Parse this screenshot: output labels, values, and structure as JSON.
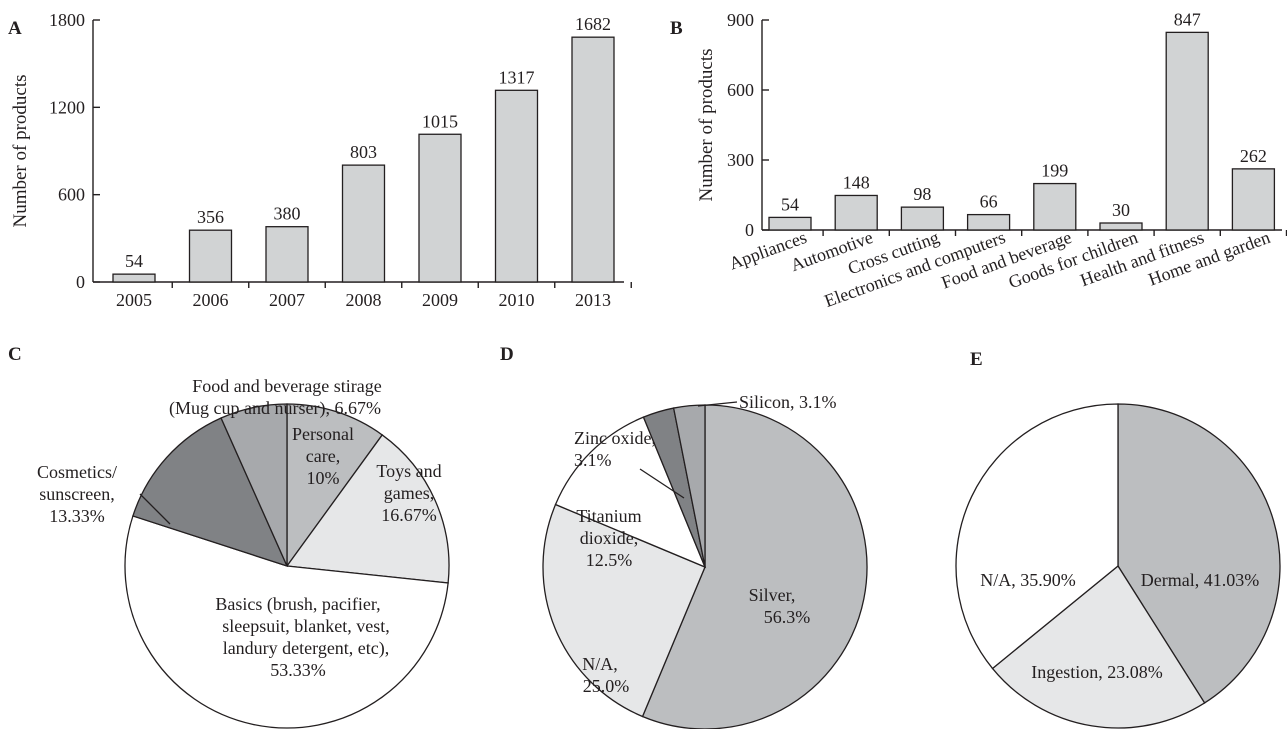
{
  "colors": {
    "bar_fill": "#d1d3d4",
    "outline": "#231f20",
    "white": "#ffffff",
    "light_gray": "#e6e7e8",
    "mid_gray": "#bcbec0",
    "gray": "#a7a9ac",
    "dark_gray": "#808285"
  },
  "panels": {
    "A": "A",
    "B": "B",
    "C": "C",
    "D": "D",
    "E": "E"
  },
  "chart_data": [
    {
      "panel": "A",
      "type": "bar",
      "ylabel": "Number of products",
      "categories": [
        "2005",
        "2006",
        "2007",
        "2008",
        "2009",
        "2010",
        "2013"
      ],
      "values": [
        54,
        356,
        380,
        803,
        1015,
        1317,
        1682
      ],
      "data_labels": [
        "54",
        "356",
        "380",
        "803",
        "1015",
        "1317",
        "1682"
      ],
      "ylim": [
        0,
        1800
      ],
      "yticks": [
        0,
        600,
        1200,
        1800
      ]
    },
    {
      "panel": "B",
      "type": "bar",
      "ylabel": "Number of products",
      "categories": [
        "Appliances",
        "Automotive",
        "Cross cutting",
        "Electronics and computers",
        "Food and beverage",
        "Goods for children",
        "Health and fitness",
        "Home and garden"
      ],
      "values": [
        54,
        148,
        98,
        66,
        199,
        30,
        847,
        262
      ],
      "data_labels": [
        "54",
        "148",
        "98",
        "66",
        "199",
        "30",
        "847",
        "262"
      ],
      "ylim": [
        0,
        900
      ],
      "yticks": [
        0,
        300,
        600,
        900
      ],
      "xtick_rotation": "angled"
    },
    {
      "panel": "C",
      "type": "pie",
      "slices": [
        {
          "name": "Personal care",
          "value": 10,
          "label_lines": [
            "Personal",
            "care,",
            "10%"
          ],
          "color": "mid_gray"
        },
        {
          "name": "Toys and games",
          "value": 16.67,
          "label_lines": [
            "Toys and",
            "games,",
            "16.67%"
          ],
          "color": "light_gray"
        },
        {
          "name": "Basics",
          "value": 53.33,
          "label_lines": [
            "Basics (brush, pacifier,",
            "sleepsuit, blanket, vest,",
            "landury detergent, etc),",
            "53.33%"
          ],
          "color": "white"
        },
        {
          "name": "Cosmetics/sunscreen",
          "value": 13.33,
          "label_lines": [
            "Cosmetics/",
            "sunscreen,",
            "13.33%"
          ],
          "color": "dark_gray"
        },
        {
          "name": "Food and beverage stirage",
          "value": 6.67,
          "label_lines": [
            "Food and beverage stirage",
            "(Mug cup and nurser), 6.67%"
          ],
          "color": "gray"
        }
      ]
    },
    {
      "panel": "D",
      "type": "pie",
      "slices": [
        {
          "name": "Silver",
          "value": 56.3,
          "label_lines": [
            "Silver,",
            "56.3%"
          ],
          "color": "mid_gray"
        },
        {
          "name": "N/A",
          "value": 25.0,
          "label_lines": [
            "N/A,",
            "25.0%"
          ],
          "color": "light_gray"
        },
        {
          "name": "Titanium dioxide",
          "value": 12.5,
          "label_lines": [
            "Titanium",
            "dioxide,",
            "12.5%"
          ],
          "color": "white"
        },
        {
          "name": "Zinc oxide",
          "value": 3.1,
          "label_lines": [
            "Zinc oxide,",
            "3.1%"
          ],
          "color": "dark_gray"
        },
        {
          "name": "Silicon",
          "value": 3.1,
          "label_lines": [
            "Silicon, 3.1%"
          ],
          "color": "gray"
        }
      ]
    },
    {
      "panel": "E",
      "type": "pie",
      "slices": [
        {
          "name": "Dermal",
          "value": 41.03,
          "label_lines": [
            "Dermal, 41.03%"
          ],
          "color": "mid_gray"
        },
        {
          "name": "Ingestion",
          "value": 23.08,
          "label_lines": [
            "Ingestion, 23.08%"
          ],
          "color": "light_gray"
        },
        {
          "name": "N/A",
          "value": 35.9,
          "label_lines": [
            "N/A, 35.90%"
          ],
          "color": "white"
        }
      ]
    }
  ]
}
